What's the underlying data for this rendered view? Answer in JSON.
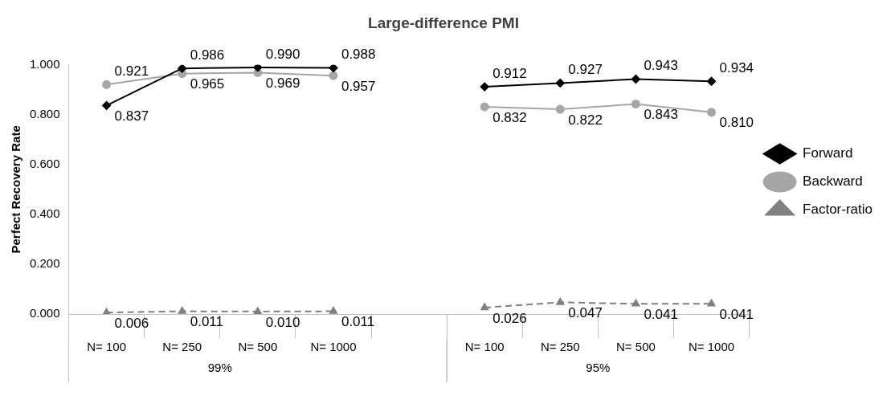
{
  "chart_data": {
    "type": "line",
    "title": "Large-difference PMI",
    "ylabel": "Perfect Recovery Rate",
    "categories": [
      "N= 100",
      "N= 250",
      "N= 500",
      "N= 1000",
      null,
      "N= 100",
      "N= 250",
      "N= 500",
      "N= 1000"
    ],
    "series": [
      {
        "name": "Forward",
        "color": "#000000",
        "marker": "diamond",
        "line_style": "solid",
        "values": [
          0.837,
          0.986,
          0.99,
          0.988,
          null,
          0.912,
          0.927,
          0.943,
          0.934
        ],
        "value_labels": [
          "0.837",
          "0.986",
          "0.990",
          "0.988",
          null,
          "0.912",
          "0.927",
          "0.943",
          "0.934"
        ]
      },
      {
        "name": "Backward",
        "color": "#a6a6a6",
        "marker": "circle",
        "line_style": "solid",
        "values": [
          0.921,
          0.965,
          0.969,
          0.957,
          null,
          0.832,
          0.822,
          0.843,
          0.81
        ],
        "value_labels": [
          "0.921",
          "0.965",
          "0.969",
          "0.957",
          null,
          "0.832",
          "0.822",
          "0.843",
          "0.810"
        ]
      },
      {
        "name": "Factor-ratio",
        "color": "#808080",
        "marker": "triangle",
        "line_style": "dashed",
        "values": [
          0.006,
          0.011,
          0.01,
          0.011,
          null,
          0.026,
          0.047,
          0.041,
          0.041
        ],
        "value_labels": [
          "0.006",
          "0.011",
          "0.010",
          "0.011",
          null,
          "0.026",
          "0.047",
          "0.041",
          "0.041"
        ]
      }
    ],
    "ylim": [
      0,
      1
    ],
    "yticks": [
      {
        "value": 0,
        "label": "0.000"
      },
      {
        "value": 0.2,
        "label": "0.200"
      },
      {
        "value": 0.4,
        "label": "0.400"
      },
      {
        "value": 0.6,
        "label": "0.600"
      },
      {
        "value": 0.8,
        "label": "0.800"
      },
      {
        "value": 1,
        "label": "1.000"
      }
    ],
    "annotations": [
      "99%",
      "95%"
    ],
    "legend": "right",
    "grid": false
  }
}
